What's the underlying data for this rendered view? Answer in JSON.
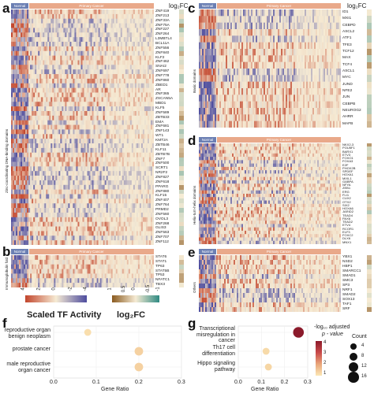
{
  "labels": {
    "a": "a",
    "b": "b",
    "c": "c",
    "d": "d",
    "e": "e",
    "f": "f",
    "g": "g"
  },
  "colors": {
    "normal": "#6b7fb3",
    "cancer": "#e9a98a",
    "neg": "#4d4c9e",
    "pos": "#c2452c",
    "mid": "#f6ebd4"
  },
  "headers": {
    "normal": "Normal",
    "cancer": "Primary Cancer"
  },
  "fc_title": "log₂FC",
  "panel_a": {
    "side_label": "Zinc-coordinating DNA-binding domains",
    "genes": [
      "ZNF419",
      "ZNF213",
      "ZNF33A",
      "ZNF75A",
      "ZNF227",
      "ZNF264",
      "L3MBTL4",
      "BCL11A",
      "ZNF556",
      "ZNF840",
      "KLF2",
      "ZNF462",
      "SNAI2",
      "ZNF697",
      "ZNF778",
      "ZNF860",
      "ZBED1",
      "AR",
      "ZNF365",
      "ZSCAN5A",
      "MBD1",
      "KLF5",
      "ZNF589",
      "ZBTB33",
      "EMA",
      "ZNF681",
      "ZNF143",
      "WT1",
      "KMT2A",
      "ZBTB46",
      "KLF11",
      "ZBTB7B",
      "ZNF7",
      "ZNF500",
      "SCRT1",
      "NR2F2",
      "ZNF827",
      "ZNF618",
      "PPARG",
      "ZNF880",
      "KLF15",
      "ZNF407",
      "ZNF764",
      "PRMD2",
      "ZNF560",
      "OVOL3",
      "ZNF268",
      "GLIS3",
      "ZNF563",
      "ZNF707",
      "ZNF112"
    ]
  },
  "panel_b": {
    "side_label": "Immunoglobulin fold",
    "genes": [
      "STAT6",
      "STAT1",
      "TP63",
      "STAT5B",
      "TP53",
      "NFATC1",
      "TBX3"
    ]
  },
  "panel_c": {
    "side_label": "Basic domains",
    "genes": [
      "ID1",
      "MXI1",
      "CEBPD",
      "ASCL2",
      "ATF1",
      "TFE3",
      "TCF12",
      "MAX",
      "TCF4",
      "ASCL1",
      "MYC",
      "JUND",
      "NFE2",
      "JUN",
      "CEBPB",
      "NEUROG2",
      "AHRR",
      "MAFB"
    ]
  },
  "panel_d": {
    "side_label": "Helix-turn-helix domains",
    "genes": [
      "NKX2-3",
      "POU5F1",
      "BARX1",
      "ETV3",
      "FOXO1",
      "FOXA3",
      "E2F",
      "PHOX2B",
      "SPDEF",
      "HOXA1",
      "MIXL1",
      "GABPA",
      "NFYA",
      "ZEB1",
      "ERG",
      "FLI1",
      "CUX2",
      "OTX2",
      "SIX2",
      "HOXA6",
      "JARID2",
      "TEAD4",
      "PAX6",
      "TEAD2",
      "ETV4",
      "RCOR1",
      "ELF3",
      "FOXC2",
      "DLX6",
      "MNX1"
    ]
  },
  "panel_e": {
    "side_label": "Others",
    "genes": [
      "YBX1",
      "NSD2",
      "HBP1",
      "SMARCC1",
      "SMAD1",
      "SMC3",
      "SP3",
      "NRF1",
      "SMAD2",
      "SOX13",
      "TAF1",
      "SRF"
    ]
  },
  "legend_scaled": {
    "title": "Scaled TF Activity",
    "ticks": [
      "4",
      "2",
      "0",
      "-2",
      "-4"
    ]
  },
  "legend_fc": {
    "title": "log₂FC",
    "ticks": [
      "1",
      "0.5",
      "0",
      "-0.5",
      "-1"
    ]
  },
  "panel_f": {
    "categories": [
      "reproductive organ benign neoplasm",
      "prostate cancer",
      "male reproductive organ cancer"
    ],
    "x_label": "Gene Ratio",
    "x_ticks": [
      "0.0",
      "0.1",
      "0.2",
      "0.3"
    ]
  },
  "panel_g": {
    "categories": [
      "Transcriptional misregulation in cancer",
      "Th17 cell differentiation",
      "Hippo signaling pathway"
    ],
    "x_label": "Gene Ratio",
    "x_ticks": [
      "0.0",
      "0.1",
      "0.2",
      "0.3"
    ]
  },
  "legend_padj": {
    "title1": "-log₁₀ adjusted",
    "title2": "p - value",
    "ticks": [
      "4",
      "3",
      "2",
      "1"
    ]
  },
  "legend_count": {
    "title": "Count",
    "ticks": [
      "4",
      "8",
      "12",
      "16"
    ]
  },
  "chart_data": [
    {
      "type": "scatter",
      "panel": "f",
      "x_label": "Gene Ratio",
      "xlim": [
        0,
        0.3
      ],
      "categories": [
        "reproductive organ benign neoplasm",
        "prostate cancer",
        "male reproductive organ cancer"
      ],
      "x": [
        0.08,
        0.2,
        0.2
      ],
      "count": [
        4,
        8,
        8
      ],
      "neg_log10_padj": [
        1.2,
        1.5,
        1.5
      ]
    },
    {
      "type": "scatter",
      "panel": "g",
      "x_label": "Gene Ratio",
      "xlim": [
        0,
        0.3
      ],
      "categories": [
        "Transcriptional misregulation in cancer",
        "Th17 cell differentiation",
        "Hippo signaling pathway"
      ],
      "x": [
        0.26,
        0.12,
        0.13
      ],
      "count": [
        16,
        4,
        4
      ],
      "neg_log10_padj": [
        4,
        1.3,
        1.4
      ]
    }
  ]
}
